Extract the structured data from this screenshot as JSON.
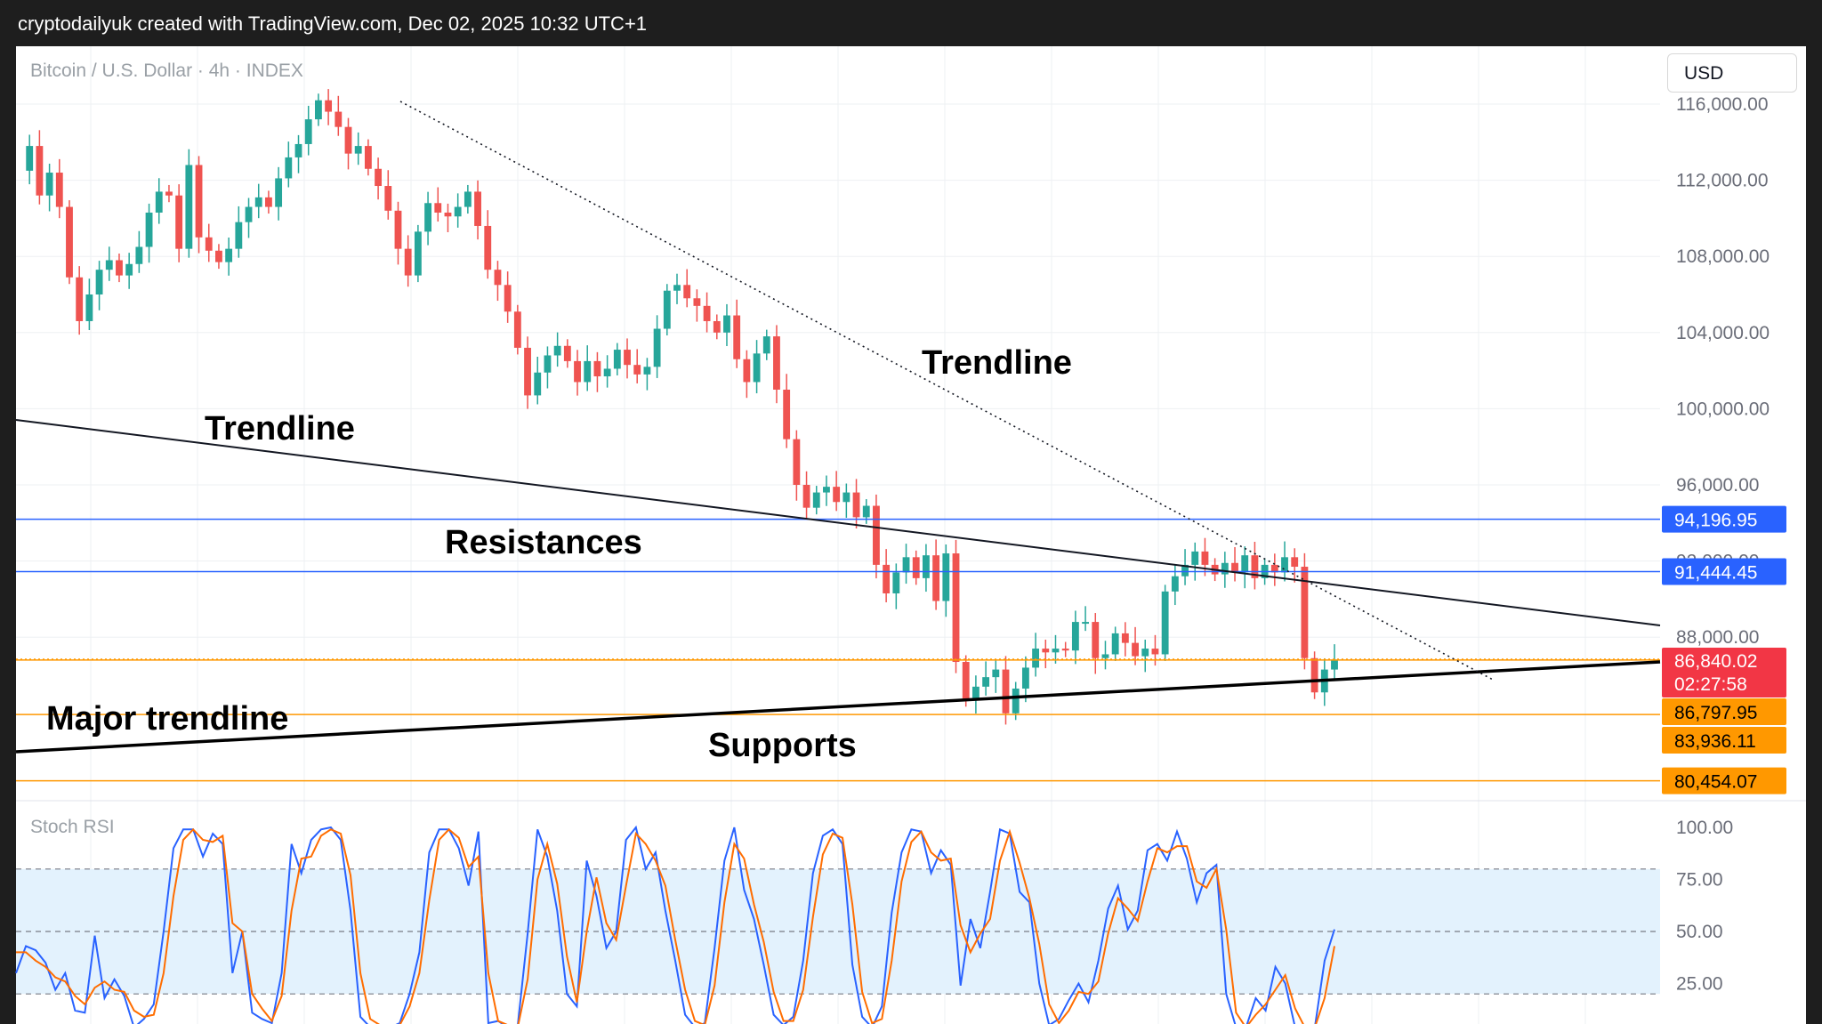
{
  "header": {
    "watermark_text": "cryptodailyuk created with TradingView.com, Dec 02, 2025 10:32 UTC+1"
  },
  "toolbar": {
    "currency_button": "USD"
  },
  "colors": {
    "up": "#26a69a",
    "down": "#ef5350",
    "resistance": "#2962ff",
    "support": "#ff9800",
    "stoch_k": "#2962ff",
    "stoch_d": "#ff6d00",
    "band_fill": "#e3f2fd"
  },
  "chart_data": [
    {
      "type": "candlestick",
      "symbol_label": "Bitcoin / U.S. Dollar · 4h · INDEX",
      "y_axis_ticks": [
        "116,000.00",
        "112,000.00",
        "108,000.00",
        "104,000.00",
        "100,000.00",
        "96,000.00",
        "92,000.00",
        "88,000.00"
      ],
      "ylim": [
        77900,
        116200
      ],
      "price_series": [
        112500,
        113800,
        111200,
        112400,
        110600,
        106900,
        104600,
        106000,
        107300,
        107800,
        107000,
        107600,
        108500,
        110300,
        111400,
        111200,
        108400,
        112800,
        109000,
        108300,
        107700,
        108400,
        109800,
        110600,
        111100,
        110600,
        112100,
        113200,
        113900,
        115200,
        116200,
        115600,
        114800,
        113400,
        113800,
        112600,
        111700,
        110400,
        108400,
        107000,
        109300,
        110800,
        110300,
        110100,
        110600,
        111400,
        109600,
        107300,
        106500,
        105100,
        103200,
        100700,
        101900,
        102800,
        103300,
        102500,
        101400,
        102500,
        101700,
        102100,
        103100,
        102300,
        101800,
        102200,
        104200,
        106200,
        106500,
        105800,
        105400,
        104600,
        104000,
        104900,
        102600,
        101400,
        102900,
        103800,
        101000,
        98400,
        96000,
        94800,
        95600,
        95900,
        95100,
        95600,
        94300,
        94900,
        91800,
        90300,
        91400,
        92200,
        91100,
        92300,
        89900,
        92400,
        86700,
        84700,
        85400,
        85900,
        86300,
        84000,
        85300,
        86400,
        87400,
        87200,
        87400,
        87300,
        88800,
        88800,
        86900,
        87100,
        88200,
        87700,
        87000,
        87400,
        87100,
        90400,
        91200,
        91800,
        92500,
        91800,
        91300,
        91900,
        91400,
        92300,
        91100,
        91800,
        91400,
        92200,
        91700,
        86900,
        85100,
        86300,
        86800
      ],
      "resistances": [
        94196.95,
        91444.45
      ],
      "supports": [
        86797.95,
        83936.11,
        80454.07
      ],
      "current_price": "86,840.02",
      "countdown": "02:27:58",
      "price_labels": {
        "r1": "94,196.95",
        "r2": "91,444.45",
        "current": "86,840.02",
        "s1": "86,797.95",
        "s2": "83,936.11",
        "s3": "80,454.07"
      },
      "annotations": [
        "Trendline",
        "Trendline",
        "Resistances",
        "Major trendline",
        "Supports"
      ]
    },
    {
      "type": "line",
      "title": "Stoch RSI",
      "y_axis_ticks": [
        "100.00",
        "75.00",
        "50.00",
        "25.00"
      ],
      "ylim": [
        0,
        100
      ],
      "bands": [
        80,
        20
      ],
      "series": [
        {
          "color": "#2962ff",
          "values": [
            30,
            43,
            41,
            35,
            22,
            30,
            12,
            11,
            48,
            18,
            27,
            19,
            3,
            8,
            15,
            50,
            90,
            99,
            99,
            86,
            97,
            92,
            30,
            50,
            11,
            8,
            6,
            30,
            92,
            78,
            94,
            99,
            100,
            94,
            60,
            9,
            4,
            4,
            2,
            6,
            20,
            40,
            88,
            99,
            99,
            90,
            72,
            98,
            6,
            7,
            3,
            5,
            49,
            99,
            86,
            60,
            20,
            14,
            84,
            67,
            42,
            50,
            94,
            100,
            80,
            88,
            60,
            36,
            10,
            4,
            6,
            42,
            84,
            100,
            70,
            56,
            34,
            10,
            5,
            9,
            36,
            78,
            96,
            99,
            92,
            34,
            9,
            3,
            14,
            59,
            88,
            99,
            98,
            78,
            89,
            82,
            24,
            56,
            42,
            69,
            99,
            97,
            69,
            64,
            25,
            5,
            8,
            17,
            25,
            16,
            36,
            61,
            72,
            51,
            60,
            89,
            92,
            84,
            98,
            85,
            64,
            78,
            82,
            20,
            3,
            2,
            18,
            12,
            33,
            25,
            2,
            0,
            1,
            36,
            51
          ]
        },
        {
          "color": "#ff6d00",
          "values": [
            40,
            40,
            36,
            33,
            28,
            26,
            19,
            15,
            23,
            26,
            22,
            21,
            12,
            9,
            10,
            30,
            67,
            94,
            99,
            94,
            93,
            96,
            54,
            50,
            20,
            13,
            7,
            19,
            60,
            85,
            86,
            96,
            99,
            97,
            77,
            30,
            8,
            5,
            3,
            5,
            14,
            30,
            65,
            94,
            99,
            95,
            81,
            86,
            30,
            7,
            5,
            4,
            27,
            75,
            92,
            73,
            38,
            16,
            50,
            76,
            54,
            46,
            72,
            97,
            92,
            84,
            72,
            46,
            22,
            7,
            5,
            24,
            64,
            92,
            85,
            63,
            45,
            21,
            7,
            7,
            22,
            57,
            87,
            97,
            95,
            63,
            21,
            6,
            8,
            36,
            74,
            93,
            98,
            88,
            84,
            85,
            53,
            40,
            49,
            56,
            84,
            98,
            83,
            66,
            44,
            15,
            6,
            12,
            21,
            20,
            26,
            49,
            66,
            61,
            55,
            74,
            90,
            88,
            91,
            91,
            74,
            71,
            80,
            51,
            11,
            2,
            10,
            15,
            22,
            29,
            13,
            1,
            0,
            18,
            43
          ]
        }
      ]
    }
  ]
}
